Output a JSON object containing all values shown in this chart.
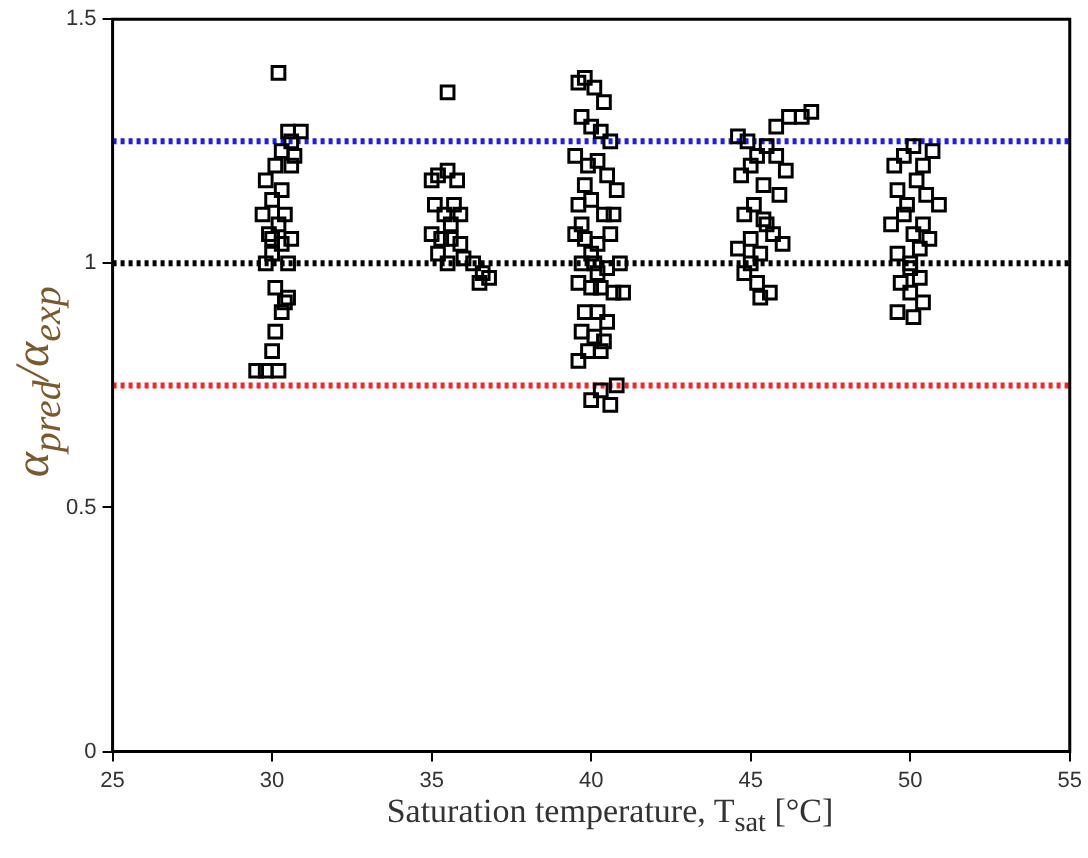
{
  "chart_data": {
    "type": "scatter",
    "xlabel": "Saturation temperature, T$_{sat}$ [°C]",
    "ylabel": "α$_{pred}$/α$_{exp}$",
    "xlim": [
      25,
      55
    ],
    "ylim": [
      0,
      1.5
    ],
    "xticks": [
      25,
      30,
      35,
      40,
      45,
      50,
      55
    ],
    "yticks": [
      0,
      0.5,
      1,
      1.5
    ],
    "grid": false,
    "legend": false,
    "marker": "square",
    "ref_lines": [
      {
        "axis": "y",
        "value": 1.25,
        "color": "#1a1aff",
        "line_style": "dotted"
      },
      {
        "axis": "y",
        "value": 1,
        "color": "#000000",
        "line_style": "dotted"
      },
      {
        "axis": "y",
        "value": 0.75,
        "color": "#ff2020",
        "line_style": "dotted"
      }
    ],
    "series": [
      {
        "color": "#000000",
        "x": [
          29.5,
          29.8,
          30.2,
          30.0,
          30.1,
          30.3,
          30.4,
          30.1,
          30.5,
          29.8,
          30.0,
          30.3,
          29.9,
          30.2,
          29.7,
          30.4,
          30.0,
          30.3,
          29.8,
          30.1,
          30.6,
          30.3,
          30.6,
          30.9,
          30.5,
          30.7,
          30.2,
          30.0,
          30.5,
          30.6,
          35.0,
          35.2,
          35.5,
          35.8,
          35.1,
          35.4,
          35.7,
          35.0,
          35.3,
          35.6,
          35.9,
          35.2,
          35.5,
          36.0,
          36.3,
          36.6,
          36.8,
          36.5,
          35.6,
          35.9,
          35.5,
          39.6,
          39.8,
          40.1,
          40.4,
          39.7,
          40.0,
          40.3,
          40.6,
          39.5,
          39.9,
          40.2,
          40.5,
          40.8,
          39.6,
          40.0,
          40.4,
          40.7,
          39.5,
          39.8,
          40.2,
          40.6,
          39.7,
          40.1,
          40.5,
          40.9,
          39.6,
          40.0,
          40.3,
          40.7,
          39.8,
          40.2,
          40.5,
          39.7,
          40.1,
          40.4,
          39.9,
          40.3,
          39.6,
          40.0,
          40.6,
          40.8,
          40.3,
          39.8,
          39.7,
          40.0,
          40.2,
          41.0,
          44.6,
          44.9,
          45.2,
          45.5,
          45.8,
          46.2,
          46.6,
          46.9,
          44.7,
          45.0,
          45.4,
          45.8,
          46.1,
          44.8,
          45.1,
          45.5,
          45.9,
          44.6,
          45.0,
          45.3,
          45.7,
          46.0,
          44.8,
          45.2,
          45.6,
          45.0,
          45.4,
          45.3,
          49.5,
          49.8,
          50.1,
          50.4,
          50.7,
          49.6,
          49.9,
          50.2,
          50.5,
          49.4,
          49.8,
          50.1,
          50.4,
          50.9,
          49.6,
          50.0,
          50.3,
          50.6,
          49.7,
          50.0,
          50.3,
          49.6,
          50.1,
          50.4,
          50.0
        ],
        "values": [
          0.78,
          0.78,
          0.78,
          0.82,
          0.86,
          0.9,
          0.92,
          0.95,
          0.93,
          1.0,
          1.02,
          1.04,
          1.06,
          1.08,
          1.1,
          1.1,
          1.13,
          1.15,
          1.17,
          1.2,
          1.2,
          1.23,
          1.25,
          1.27,
          1.27,
          1.22,
          1.39,
          1.05,
          1.0,
          1.05,
          1.17,
          1.18,
          1.19,
          1.17,
          1.12,
          1.1,
          1.12,
          1.06,
          1.05,
          1.05,
          1.04,
          1.02,
          1.0,
          1.01,
          1.0,
          0.98,
          0.97,
          0.96,
          1.08,
          1.1,
          1.35,
          1.37,
          1.38,
          1.36,
          1.33,
          1.3,
          1.28,
          1.27,
          1.25,
          1.22,
          1.2,
          1.21,
          1.18,
          1.15,
          1.12,
          1.13,
          1.1,
          1.1,
          1.06,
          1.05,
          1.04,
          1.06,
          1.0,
          1.0,
          0.99,
          1.0,
          0.96,
          0.95,
          0.95,
          0.94,
          0.9,
          0.9,
          0.88,
          0.86,
          0.85,
          0.84,
          0.82,
          0.82,
          0.8,
          0.72,
          0.71,
          0.75,
          0.74,
          1.16,
          1.08,
          1.02,
          0.98,
          0.94,
          1.26,
          1.25,
          1.22,
          1.24,
          1.28,
          1.3,
          1.3,
          1.31,
          1.18,
          1.2,
          1.16,
          1.22,
          1.19,
          1.1,
          1.12,
          1.08,
          1.14,
          1.03,
          1.05,
          1.02,
          1.06,
          1.04,
          0.98,
          0.96,
          0.94,
          1.0,
          1.09,
          0.93,
          1.2,
          1.22,
          1.24,
          1.2,
          1.23,
          1.15,
          1.12,
          1.17,
          1.14,
          1.08,
          1.1,
          1.06,
          1.08,
          1.12,
          1.02,
          1.0,
          1.03,
          1.05,
          0.96,
          0.94,
          0.97,
          0.9,
          0.89,
          0.92,
          0.99
        ]
      }
    ]
  }
}
